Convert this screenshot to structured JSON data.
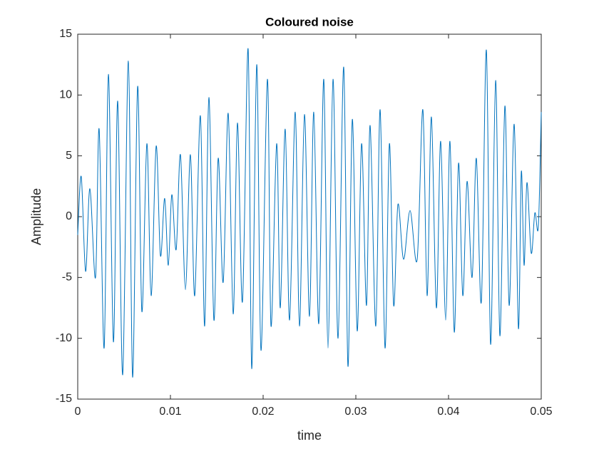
{
  "chart_data": {
    "type": "line",
    "title": "Coloured noise",
    "x_label": "time",
    "y_label": "Amplitude",
    "x": [
      0,
      0.00038,
      0.00085,
      0.00131,
      0.00192,
      0.00231,
      0.00285,
      0.00331,
      0.00385,
      0.00431,
      0.00485,
      0.00546,
      0.00592,
      0.00646,
      0.00692,
      0.00746,
      0.00792,
      0.00846,
      0.00892,
      0.00938,
      0.00977,
      0.01015,
      0.01062,
      0.01108,
      0.01162,
      0.01215,
      0.01262,
      0.01323,
      0.01369,
      0.01415,
      0.01469,
      0.01515,
      0.01569,
      0.01623,
      0.01677,
      0.01723,
      0.01777,
      0.01838,
      0.01877,
      0.01931,
      0.01977,
      0.02046,
      0.02085,
      0.02146,
      0.02185,
      0.02238,
      0.02285,
      0.02346,
      0.02392,
      0.02446,
      0.025,
      0.02546,
      0.026,
      0.02654,
      0.027,
      0.02754,
      0.02808,
      0.02869,
      0.02915,
      0.02962,
      0.03015,
      0.03062,
      0.03115,
      0.03154,
      0.03215,
      0.03262,
      0.03315,
      0.03362,
      0.03408,
      0.03454,
      0.03515,
      0.03585,
      0.03662,
      0.03723,
      0.03769,
      0.03815,
      0.03869,
      0.03915,
      0.03969,
      0.04015,
      0.04062,
      0.04108,
      0.04154,
      0.042,
      0.04254,
      0.043,
      0.04354,
      0.04408,
      0.04454,
      0.04508,
      0.04554,
      0.04608,
      0.04654,
      0.04708,
      0.04754,
      0.04785,
      0.04815,
      0.04846,
      0.04892,
      0.04931,
      0.04969,
      0.05
    ],
    "series": [
      {
        "color": "#0072bd",
        "values": [
          -1.5,
          3.3,
          -4.5,
          2.3,
          -5,
          7.2,
          -10.8,
          11.7,
          -10.3,
          9.5,
          -13,
          12.8,
          -13.2,
          10.7,
          -7.8,
          6,
          -6.5,
          5.8,
          -3.2,
          1.5,
          -4,
          1.8,
          -2.7,
          5.1,
          -6,
          5.1,
          -6.5,
          8.3,
          -9,
          9.8,
          -8.5,
          4.8,
          -5.4,
          8.5,
          -8,
          7.7,
          -7,
          13.8,
          -12.5,
          12.5,
          -11,
          11.3,
          -9,
          6,
          -7.5,
          7.2,
          -8.5,
          8.6,
          -9,
          8.4,
          -8.2,
          8.6,
          -8.8,
          11.3,
          -10.8,
          11.3,
          -10,
          12.3,
          -12.3,
          8,
          -9.4,
          6,
          -7.3,
          7.5,
          -9,
          8.8,
          -10.8,
          6,
          -7.3,
          1,
          -3.5,
          0.5,
          -3.5,
          8.8,
          -6.5,
          8.2,
          -7.5,
          6.2,
          -8.5,
          6.2,
          -9.5,
          4.4,
          -6.5,
          2.9,
          -5,
          4.8,
          -7,
          13.7,
          -10.5,
          11.2,
          -9.8,
          9.1,
          -7.3,
          7.6,
          -9.2,
          3.7,
          -4,
          2.8,
          -3,
          0.3,
          -0.8,
          8.6
        ]
      }
    ],
    "xlim": [
      0,
      0.05
    ],
    "xticks": [
      0,
      0.01,
      0.02,
      0.03,
      0.04,
      0.05
    ],
    "ylim": [
      -15,
      15
    ],
    "yticks": [
      -15,
      -10,
      -5,
      0,
      5,
      10,
      15
    ]
  }
}
